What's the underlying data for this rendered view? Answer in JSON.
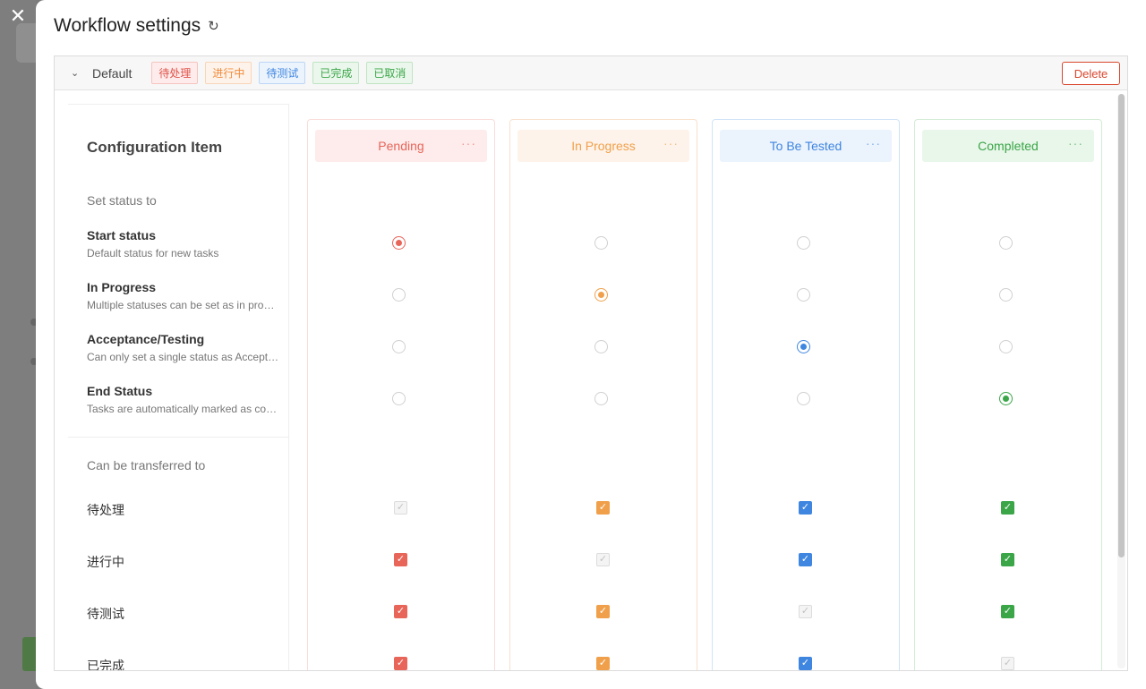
{
  "modal": {
    "title": "Workflow settings",
    "close_icon": "close-icon",
    "refresh_icon": "refresh-icon"
  },
  "workflow": {
    "name": "Default",
    "tags": [
      {
        "label": "待处理",
        "color": "#e0524a",
        "bg": "#fdeceb",
        "border": "#f6c4c0"
      },
      {
        "label": "进行中",
        "color": "#f08c3c",
        "bg": "#fef3ea",
        "border": "#f9d5b8"
      },
      {
        "label": "待测试",
        "color": "#3f86e0",
        "bg": "#ebf3fd",
        "border": "#bcd6f6"
      },
      {
        "label": "已完成",
        "color": "#3aa648",
        "bg": "#ebf7ec",
        "border": "#bfe4c3"
      },
      {
        "label": "已取消",
        "color": "#3aa648",
        "bg": "#ebf7ec",
        "border": "#bfe4c3"
      }
    ],
    "delete_label": "Delete"
  },
  "config": {
    "title": "Configuration Item",
    "set_status_label": "Set status to",
    "items": [
      {
        "title": "Start status",
        "desc": "Default status for new tasks"
      },
      {
        "title": "In Progress",
        "desc": "Multiple statuses can be set as in progress"
      },
      {
        "title": "Acceptance/Testing",
        "desc": "Can only set a single status as Acceptance/Testing"
      },
      {
        "title": "End Status",
        "desc": "Tasks are automatically marked as completed"
      }
    ],
    "transfer_label": "Can be transferred to",
    "transfer_targets": [
      "待处理",
      "进行中",
      "待测试",
      "已完成"
    ]
  },
  "statuses": [
    {
      "name": "Pending",
      "color": "#e8655a",
      "bg": "#fdeceb",
      "col_border": "#fadcd9",
      "selected_item": 0,
      "transfers": [
        "disabled",
        "checked",
        "checked",
        "checked"
      ]
    },
    {
      "name": "In Progress",
      "color": "#f0a04b",
      "bg": "#fef3ea",
      "col_border": "#f9e0cc",
      "selected_item": 1,
      "transfers": [
        "checked",
        "disabled",
        "checked",
        "checked"
      ]
    },
    {
      "name": "To Be Tested",
      "color": "#3f86e0",
      "bg": "#ebf3fd",
      "col_border": "#d0e3f8",
      "selected_item": 2,
      "transfers": [
        "checked",
        "checked",
        "disabled",
        "checked"
      ]
    },
    {
      "name": "Completed",
      "color": "#3aa648",
      "bg": "#e9f6ea",
      "col_border": "#d3ecd5",
      "selected_item": 3,
      "transfers": [
        "checked",
        "checked",
        "checked",
        "disabled"
      ]
    }
  ],
  "more_icon": "more-horizontal-icon"
}
